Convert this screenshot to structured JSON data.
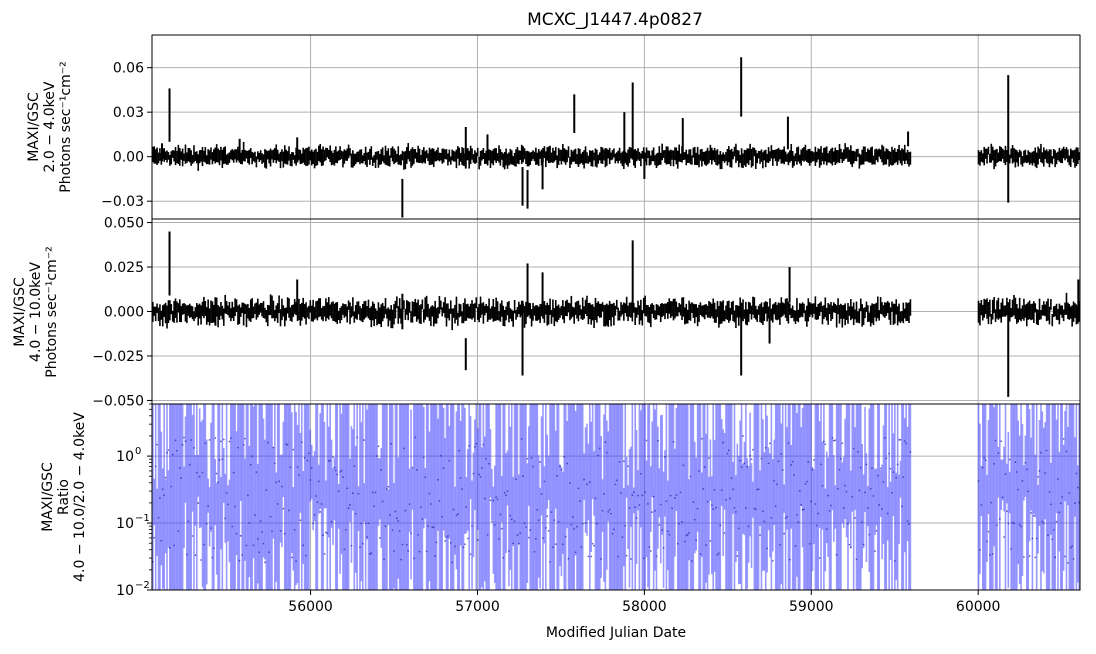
{
  "chart_data": [
    {
      "type": "scatter",
      "title": "MCXC_J1447.4p0827",
      "ylabel_lines": [
        "MAXI/GSC",
        "2.0 − 4.0keV",
        "Photons sec⁻¹cm⁻²"
      ],
      "xlim": [
        55050,
        60610
      ],
      "ylim": [
        -0.042,
        0.082
      ],
      "yticks": [
        0.06,
        0.03,
        0.0,
        -0.03
      ],
      "ytick_labels": [
        "0.06",
        "0.03",
        "0.00",
        "−0.03"
      ],
      "grid": true,
      "series": [
        {
          "color": "#000000",
          "errorbars_described": "Dense light curve ~0.00 ± 0.005 with sparse larger error bars",
          "x": [
            55110,
            55155,
            55575,
            55920,
            56550,
            56930,
            57060,
            57270,
            57300,
            57390,
            57580,
            57880,
            57930,
            58000,
            58230,
            58580,
            58860,
            59580,
            60180
          ],
          "y": [
            0.003,
            0.028,
            0.004,
            0.006,
            -0.028,
            0.006,
            0.005,
            -0.02,
            -0.022,
            -0.012,
            0.029,
            0.015,
            0.024,
            -0.006,
            0.012,
            0.047,
            0.016,
            0.012,
            0.012
          ],
          "err": [
            0.006,
            0.018,
            0.008,
            0.007,
            0.013,
            0.014,
            0.01,
            0.013,
            0.013,
            0.01,
            0.013,
            0.015,
            0.026,
            0.009,
            0.014,
            0.02,
            0.011,
            0.005,
            0.043
          ]
        }
      ]
    },
    {
      "type": "scatter",
      "ylabel_lines": [
        "MAXI/GSC",
        "4.0 − 10.0keV",
        "Photons sec⁻¹cm⁻²"
      ],
      "xlim": [
        55050,
        60610
      ],
      "ylim": [
        -0.052,
        0.052
      ],
      "yticks": [
        0.05,
        0.025,
        0.0,
        -0.025,
        -0.05
      ],
      "ytick_labels": [
        "0.050",
        "0.025",
        "0.000",
        "−0.025",
        "−0.050"
      ],
      "grid": true,
      "series": [
        {
          "color": "#000000",
          "x": [
            55155,
            55430,
            55920,
            56550,
            56930,
            57270,
            57300,
            57390,
            57930,
            58580,
            58750,
            58870,
            60180,
            60600
          ],
          "y": [
            0.027,
            0.0,
            0.008,
            0.0,
            -0.024,
            -0.015,
            0.012,
            0.01,
            0.022,
            -0.018,
            -0.01,
            0.015,
            -0.025,
            0.01
          ],
          "err": [
            0.018,
            0.008,
            0.01,
            0.01,
            0.009,
            0.021,
            0.015,
            0.012,
            0.018,
            0.018,
            0.008,
            0.01,
            0.023,
            0.008
          ]
        }
      ]
    },
    {
      "type": "scatter",
      "ylabel_lines": [
        "MAXI/GSC",
        "Ratio",
        "4.0 − 10.0/2.0 − 4.0keV"
      ],
      "xlabel": "Modified Julian Date",
      "xlim": [
        55050,
        60610
      ],
      "ylim_log": [
        0.01,
        6
      ],
      "yscale": "log",
      "yticks": [
        1,
        0.1,
        0.01
      ],
      "ytick_labels": [
        "10",
        "10",
        "10"
      ],
      "ytick_exponents": [
        "0",
        "−1",
        "−2"
      ],
      "xticks": [
        56000,
        57000,
        58000,
        59000,
        60000
      ],
      "xtick_labels": [
        "56000",
        "57000",
        "58000",
        "59000",
        "60000"
      ],
      "grid": true,
      "series": [
        {
          "color": "#4444ff",
          "description": "Dense semi-transparent blue error bars spanning most of the log range; gap between ~59600 and ~60000"
        }
      ],
      "data_gaps": [
        [
          59600,
          60000
        ]
      ]
    }
  ]
}
